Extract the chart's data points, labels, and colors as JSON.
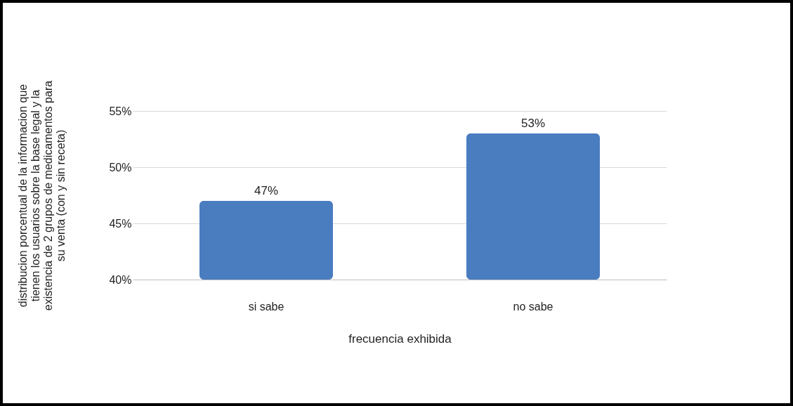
{
  "chart_data": {
    "type": "bar",
    "categories": [
      "si sabe",
      "no sabe"
    ],
    "values": [
      47,
      53
    ],
    "value_labels": [
      "47%",
      "53%"
    ],
    "color": "#4a7cc0",
    "ylim": [
      40,
      55
    ],
    "yticks": [
      {
        "value": 40,
        "label": "40%"
      },
      {
        "value": 45,
        "label": "45%"
      },
      {
        "value": 50,
        "label": "50%"
      },
      {
        "value": 55,
        "label": "55%"
      }
    ],
    "grid": "y",
    "xlabel": "frecuencia exhibida",
    "ylabel": "distribucion porcentual de la informacion que tienen los usuarios sobre la base legal y la existencia de 2 grupos de medicamentos para su venta (con y sin receta)"
  }
}
